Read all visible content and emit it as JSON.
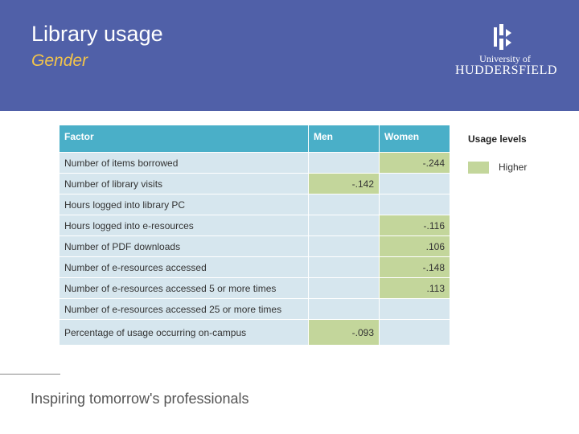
{
  "header": {
    "title": "Library usage",
    "subtitle": "Gender",
    "logo": {
      "line1": "University of",
      "line2": "HUDDERSFIELD",
      "icon": "university-crest-icon"
    },
    "background_color": "#5060a8",
    "subtitle_color": "#f3c44a"
  },
  "table": {
    "headers": [
      "Factor",
      "Men",
      "Women"
    ],
    "rows": [
      {
        "factor": "Number of items borrowed",
        "men": "",
        "women": "-.244"
      },
      {
        "factor": "Number of library visits",
        "men": "-.142",
        "women": ""
      },
      {
        "factor": "Hours logged into library PC",
        "men": "",
        "women": ""
      },
      {
        "factor": "Hours logged into e-resources",
        "men": "",
        "women": "-.116"
      },
      {
        "factor": "Number of PDF downloads",
        "men": "",
        "women": ".106"
      },
      {
        "factor": "Number of e-resources accessed",
        "men": "",
        "women": "-.148"
      },
      {
        "factor": "Number of e-resources accessed 5 or more times",
        "men": "",
        "women": ".113"
      },
      {
        "factor": "Number of e-resources accessed 25 or more times",
        "men": "",
        "women": ""
      },
      {
        "factor": "Percentage of usage occurring on-campus",
        "men": "-.093",
        "women": ""
      }
    ],
    "header_color": "#4aafc8",
    "cell_color": "#d6e6ee",
    "highlight_color": "#c3d69b"
  },
  "legend": {
    "title": "Usage levels",
    "items": [
      {
        "label": "Higher",
        "color": "#c3d69b"
      }
    ]
  },
  "footer": {
    "tagline": "Inspiring tomorrow's professionals"
  }
}
